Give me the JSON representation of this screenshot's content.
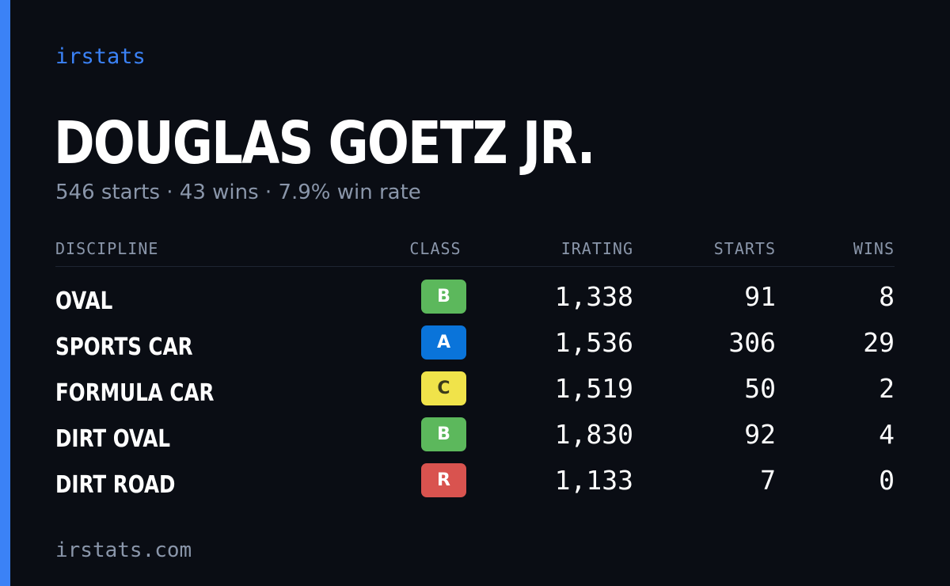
{
  "brand": "irstats",
  "driver": {
    "name": "DOUGLAS GOETZ JR.",
    "summary": "546 starts · 43 wins · 7.9% win rate"
  },
  "table": {
    "headers": {
      "discipline": "DISCIPLINE",
      "class": "CLASS",
      "irating": "IRATING",
      "starts": "STARTS",
      "wins": "WINS"
    },
    "rows": [
      {
        "discipline": "OVAL",
        "class": "B",
        "class_color": "#5cb85c",
        "class_text_color": "#ffffff",
        "irating": "1,338",
        "starts": "91",
        "wins": "8"
      },
      {
        "discipline": "SPORTS CAR",
        "class": "A",
        "class_color": "#0a74da",
        "class_text_color": "#ffffff",
        "irating": "1,536",
        "starts": "306",
        "wins": "29"
      },
      {
        "discipline": "FORMULA CAR",
        "class": "C",
        "class_color": "#f0e34a",
        "class_text_color": "#3a3a1a",
        "irating": "1,519",
        "starts": "50",
        "wins": "2"
      },
      {
        "discipline": "DIRT OVAL",
        "class": "B",
        "class_color": "#5cb85c",
        "class_text_color": "#ffffff",
        "irating": "1,830",
        "starts": "92",
        "wins": "4"
      },
      {
        "discipline": "DIRT ROAD",
        "class": "R",
        "class_color": "#d9534f",
        "class_text_color": "#ffffff",
        "irating": "1,133",
        "starts": "7",
        "wins": "0"
      }
    ]
  },
  "footer": {
    "url": "irstats.com"
  },
  "colors": {
    "accent": "#3b82f6",
    "background": "#0a0d14",
    "muted": "#8a96aa"
  }
}
